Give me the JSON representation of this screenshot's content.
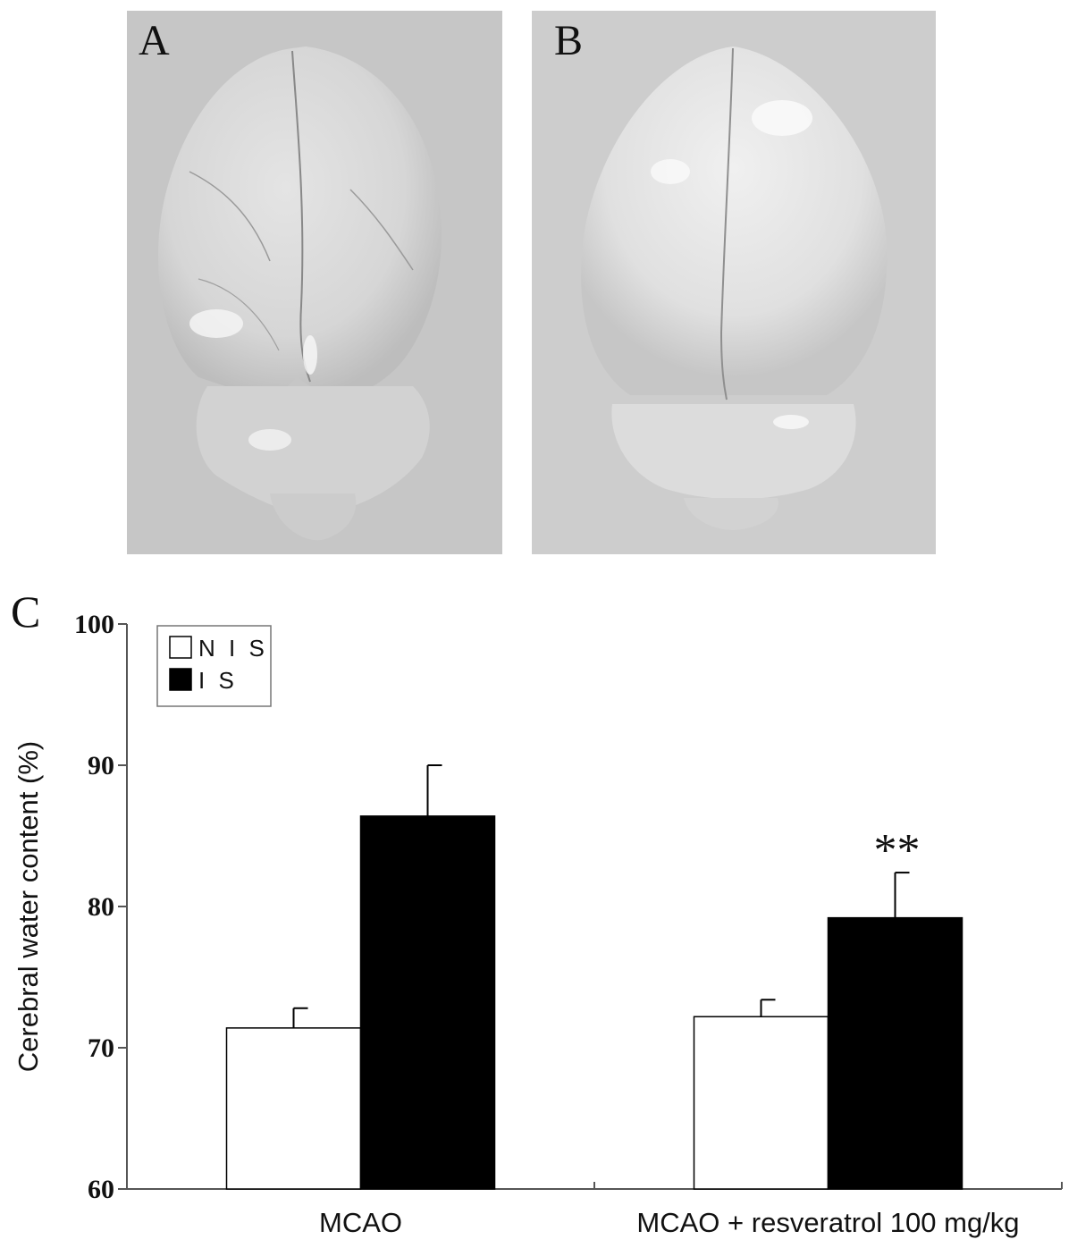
{
  "panels": {
    "a": {
      "letter": "A"
    },
    "b": {
      "letter": "B"
    },
    "c": {
      "letter": "C"
    }
  },
  "chart_data": {
    "type": "bar",
    "ylabel": "Cerebral water content (%)",
    "ylim": [
      60,
      100
    ],
    "yticks": [
      60,
      70,
      80,
      90,
      100
    ],
    "categories": [
      "MCAO",
      "MCAO + resveratrol 100 mg/kg"
    ],
    "series": [
      {
        "name": "N I S",
        "values": [
          71.4,
          72.2
        ],
        "errors": [
          1.4,
          1.2
        ],
        "color": "#ffffff"
      },
      {
        "name": "I S",
        "values": [
          86.4,
          79.2
        ],
        "errors": [
          3.6,
          3.2
        ],
        "color": "#000000"
      }
    ],
    "annotations": [
      {
        "category_index": 1,
        "series_index": 1,
        "text": "**"
      }
    ],
    "legend_position": "top-left"
  }
}
